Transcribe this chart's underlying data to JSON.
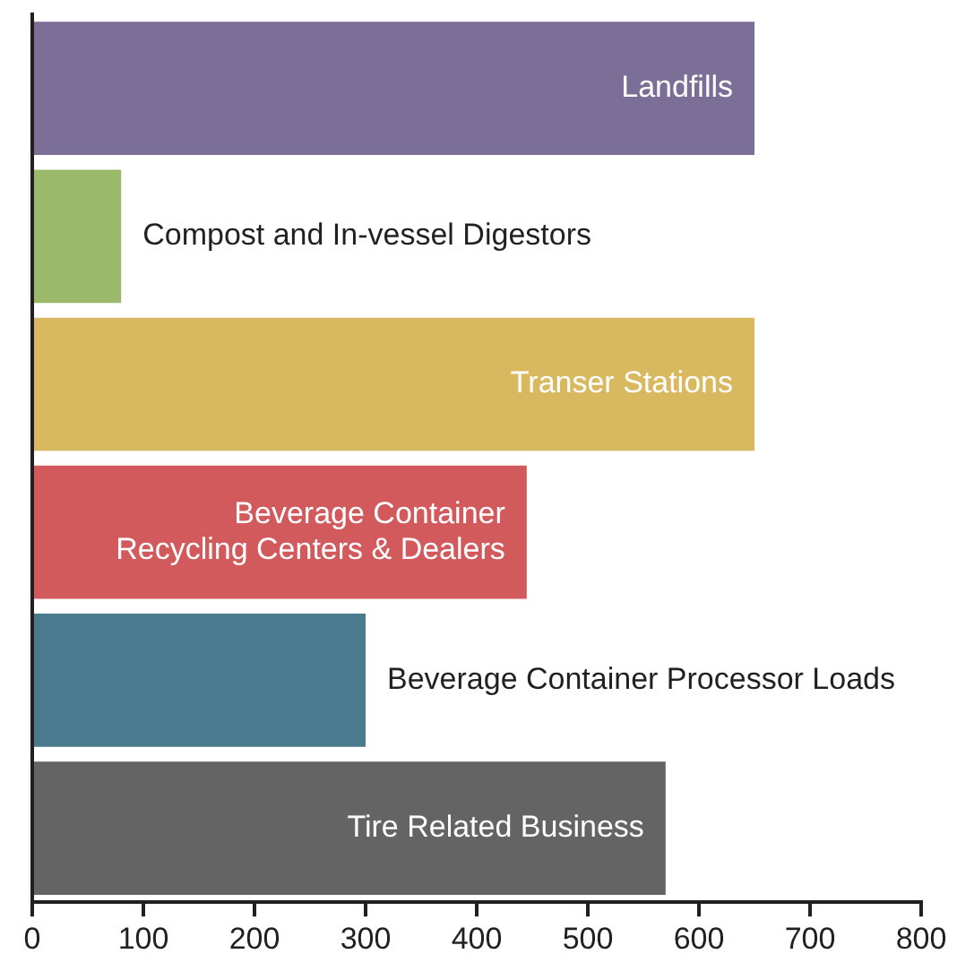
{
  "chart_data": {
    "type": "bar",
    "orientation": "horizontal",
    "categories": [
      "Landfills",
      "Compost and In-vessel Digestors",
      "Transer Stations",
      "Beverage Container Recycling Centers & Dealers",
      "Beverage Container Processor Loads",
      "Tire Related Business"
    ],
    "values": [
      650,
      80,
      650,
      445,
      300,
      570
    ],
    "colors": [
      "#7b6f98",
      "#9bb96b",
      "#d9b95f",
      "#d2595c",
      "#4a7a8d",
      "#646464"
    ],
    "xlim": [
      0,
      800
    ],
    "xticks": [
      0,
      100,
      200,
      300,
      400,
      500,
      600,
      700,
      800
    ],
    "grid": false,
    "legend": false,
    "tick_labels": "x"
  }
}
